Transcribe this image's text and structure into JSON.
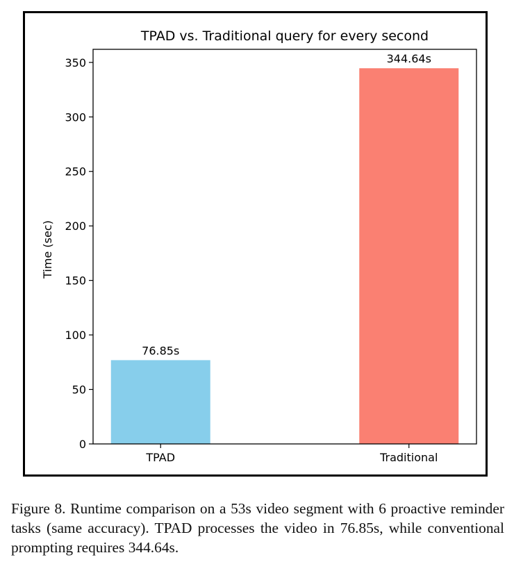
{
  "chart_data": {
    "type": "bar",
    "title": "TPAD vs. Traditional query for every second",
    "xlabel": "",
    "ylabel": "Time (sec)",
    "categories": [
      "TPAD",
      "Traditional"
    ],
    "values": [
      76.85,
      344.64
    ],
    "data_labels": [
      "76.85s",
      "344.64s"
    ],
    "colors": [
      "#87ceeb",
      "#fa8072"
    ],
    "ylim": [
      0,
      362
    ],
    "yticks": [
      0,
      50,
      100,
      150,
      200,
      250,
      300,
      350
    ],
    "grid": false,
    "legend": "none"
  },
  "caption": "Figure 8.  Runtime comparison on a 53s video segment with 6 proactive reminder tasks (same accuracy).  TPAD processes the video in 76.85s, while conventional prompting requires 344.64s."
}
